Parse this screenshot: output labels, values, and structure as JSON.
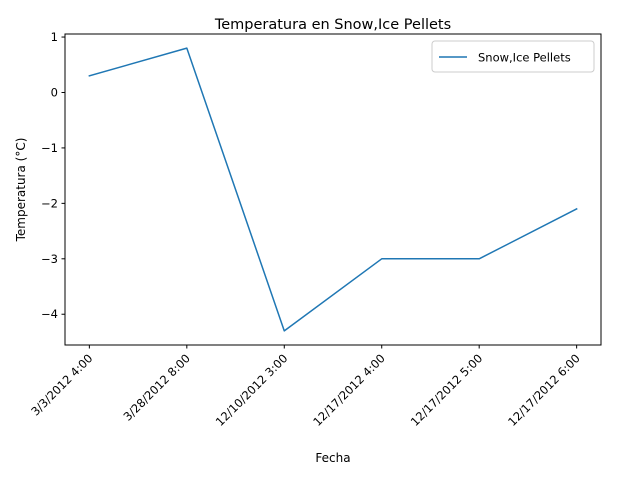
{
  "chart_data": {
    "type": "line",
    "title": "Temperatura en Snow,Ice Pellets",
    "xlabel": "Fecha",
    "ylabel": "Temperatura (°C)",
    "categories": [
      "3/3/2012 4:00",
      "3/28/2012 8:00",
      "12/10/2012 3:00",
      "12/17/2012 4:00",
      "12/17/2012 5:00",
      "12/17/2012 6:00"
    ],
    "series": [
      {
        "name": "Snow,Ice Pellets",
        "values": [
          0.3,
          0.8,
          -4.3,
          -3.0,
          -3.0,
          -2.1
        ],
        "color": "#1f77b4"
      }
    ],
    "ylim": [
      -4.555,
      1.055
    ],
    "yticks": [
      1,
      0,
      -1,
      -2,
      -3,
      -4
    ],
    "ytick_labels": [
      "1",
      "0",
      "−1",
      "−2",
      "−3",
      "−4"
    ],
    "grid": false,
    "legend_position": "top-right"
  }
}
